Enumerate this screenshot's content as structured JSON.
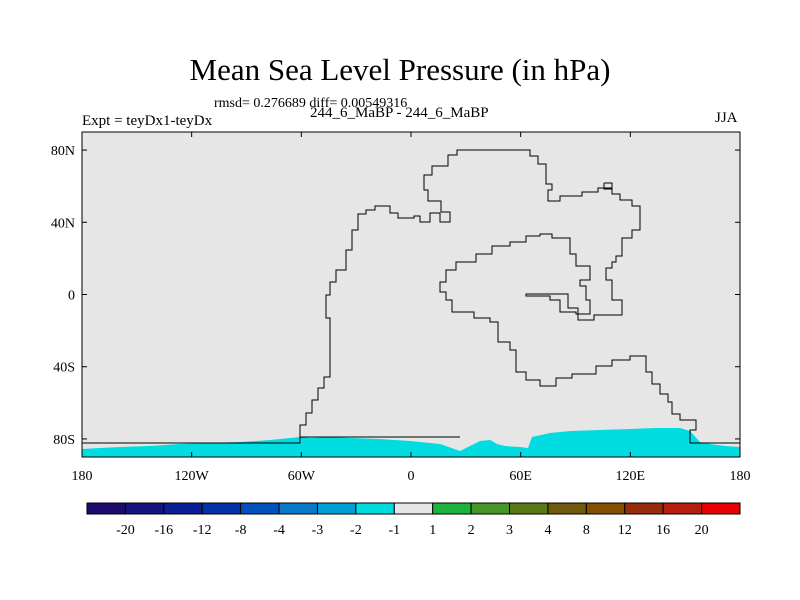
{
  "chart_data": {
    "type": "heatmap",
    "title": "Mean Sea Level Pressure (in hPa)",
    "stats": "rmsd= 0.276689 diff= 0.00549316",
    "experiment": "Expt = teyDx1-teyDx",
    "cases": "244_6_MaBP - 244_6_MaBP",
    "season": "JJA",
    "xlim": [
      -180,
      180
    ],
    "ylim": [
      -90,
      90
    ],
    "x_ticks": [
      {
        "value": -180,
        "label": "180"
      },
      {
        "value": -120,
        "label": "120W"
      },
      {
        "value": -60,
        "label": "60W"
      },
      {
        "value": 0,
        "label": "0"
      },
      {
        "value": 60,
        "label": "60E"
      },
      {
        "value": 120,
        "label": "120E"
      },
      {
        "value": 180,
        "label": "180"
      }
    ],
    "y_ticks": [
      {
        "value": 80,
        "label": "80N"
      },
      {
        "value": 40,
        "label": "40N"
      },
      {
        "value": 0,
        "label": "0"
      },
      {
        "value": -40,
        "label": "40S"
      },
      {
        "value": -80,
        "label": "80S"
      }
    ],
    "background_range": "-1 to 1",
    "background_color": "#e6e6e6",
    "anomaly_region": {
      "description": "-1 to -2 hPa band over Antarctic coastal latitudes",
      "color": "#00dce0",
      "lat_range": [
        -90,
        -76
      ]
    },
    "colorbar": {
      "levels": [
        "-20",
        "-16",
        "-12",
        "-8",
        "-4",
        "-3",
        "-2",
        "-1",
        "1",
        "2",
        "3",
        "4",
        "8",
        "12",
        "16",
        "20"
      ],
      "colors": [
        "#1e0a6e",
        "#14147f",
        "#0a1e96",
        "#0032aa",
        "#0050be",
        "#0a78c8",
        "#00a0d2",
        "#00dce0",
        "#e6e6e6",
        "#1eb43c",
        "#469628",
        "#5a7814",
        "#6e5a0a",
        "#825000",
        "#962d0a",
        "#b41e0a",
        "#e60000"
      ]
    }
  }
}
